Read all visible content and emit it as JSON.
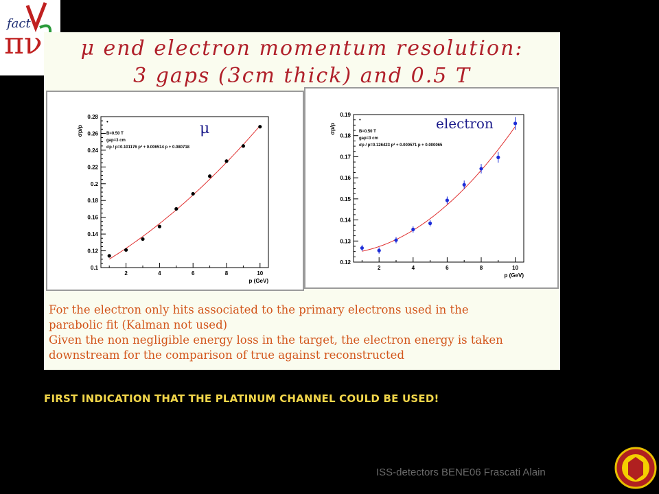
{
  "title": {
    "line1": "μ end electron momentum resolution:",
    "line2": "3 gaps (3cm thick) and 0.5 T"
  },
  "chart_data": [
    {
      "type": "scatter",
      "title": "μ",
      "xlabel": "p (GeV)",
      "ylabel": "σp/p",
      "xlim": [
        0.5,
        10.5
      ],
      "ylim": [
        0.1,
        0.28
      ],
      "xticks": [
        "2",
        "4",
        "6",
        "8",
        "10"
      ],
      "yticks": [
        "0.1",
        "0.12",
        "0.14",
        "0.16",
        "0.18",
        "0.2",
        "0.22",
        "0.24",
        "0.26",
        "0.28"
      ],
      "stats": [
        "B=0.50 T",
        "gap=3 cm",
        "σp / p=0.101176 p² + 0.006514 p + 0.080718"
      ],
      "legend_mark": "•",
      "fit": {
        "label": "σp / p=0.101176 p² + 0.006514 p + 0.080718",
        "color": "#e03030"
      },
      "series": [
        {
          "x": [
            1,
            2,
            3,
            4,
            5,
            6,
            7,
            8,
            9,
            10
          ],
          "values": [
            0.114,
            0.121,
            0.134,
            0.149,
            0.17,
            0.188,
            0.209,
            0.227,
            0.245,
            0.268
          ],
          "errors": [
            0.001,
            0.001,
            0.001,
            0.001,
            0.001,
            0.001,
            0.001,
            0.001,
            0.001,
            0.002
          ],
          "color": "#000000"
        }
      ]
    },
    {
      "type": "scatter",
      "title": "electron",
      "xlabel": "p (GeV)",
      "ylabel": "σp/p",
      "xlim": [
        0.5,
        10.5
      ],
      "ylim": [
        0.12,
        0.19
      ],
      "xticks": [
        "2",
        "4",
        "6",
        "8",
        "10"
      ],
      "yticks": [
        "0.12",
        "0.13",
        "0.14",
        "0.15",
        "0.16",
        "0.17",
        "0.18",
        "0.19"
      ],
      "stats": [
        "B=0.50 T",
        "gap=3 cm",
        "σp / p=0.126423 p² + 0.000571 p + 0.000065"
      ],
      "legend_mark": "•",
      "fit": {
        "label": "σp / p=0.126423 p² + 0.000571 p + 0.000065",
        "color": "#e03030"
      },
      "series": [
        {
          "x": [
            1,
            2,
            3,
            4,
            5,
            6,
            7,
            8,
            9,
            10
          ],
          "values": [
            0.1267,
            0.1255,
            0.1304,
            0.1355,
            0.1384,
            0.1493,
            0.1567,
            0.1643,
            0.1697,
            0.1858
          ],
          "errors": [
            0.0015,
            0.0015,
            0.0015,
            0.0015,
            0.0015,
            0.0018,
            0.002,
            0.0022,
            0.0025,
            0.003
          ],
          "color": "#1c2cd8"
        }
      ]
    }
  ],
  "notes": [
    "For the electron only hits associated to the primary electrons used in the",
    "parabolic fit (Kalman not used)",
    "Given the non negligible energy loss in the target, the electron energy is taken",
    "downstream for the comparison of true against reconstructed"
  ],
  "bottom_message": "FIRST INDICATION THAT THE PLATINUM CHANNEL COULD BE USED!",
  "footer": "ISS-detectors  BENE06 Frascati     Alain",
  "logo": {
    "text": "fact",
    "letters": "πν"
  },
  "colors": {
    "title": "#b0202a",
    "notes": "#d2551a",
    "message": "#f2d64a",
    "fit": "#e03030"
  }
}
